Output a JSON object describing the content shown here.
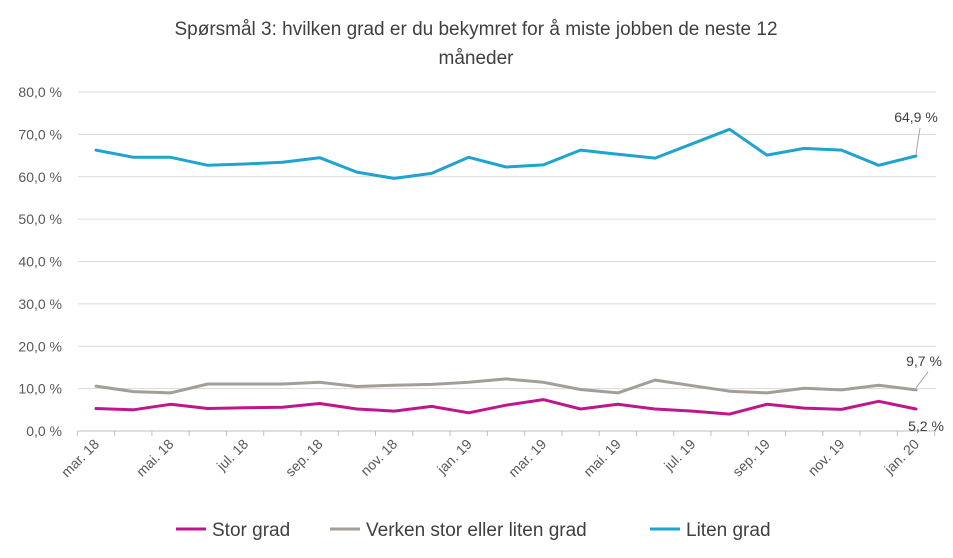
{
  "chart_data": {
    "type": "line",
    "title": "Spørsmål 3: hvilken grad er du bekymret for å miste jobben de neste 12 måneder",
    "title_lines": [
      "Spørsmål 3: hvilken grad er du bekymret for å miste jobben de neste 12",
      "måneder"
    ],
    "xlabel": "",
    "ylabel": "",
    "ylim": [
      0,
      80
    ],
    "y_ticks": [
      0,
      10,
      20,
      30,
      40,
      50,
      60,
      70,
      80
    ],
    "y_tick_labels": [
      "0,0 %",
      "10,0 %",
      "20,0 %",
      "30,0 %",
      "40,0 %",
      "50,0 %",
      "60,0 %",
      "70,0 %",
      "80,0 %"
    ],
    "x_tick_labels": [
      "mar. 18",
      "mai. 18",
      "jul. 18",
      "sep. 18",
      "nov. 18",
      "jan. 19",
      "mar. 19",
      "mai. 19",
      "jul. 19",
      "sep. 19",
      "nov. 19",
      "jan. 20"
    ],
    "grid": "horizontal",
    "legend_position": "bottom",
    "series": [
      {
        "name": "Stor grad",
        "color": "#c0168c",
        "values": [
          5.3,
          5.0,
          6.3,
          5.3,
          5.5,
          5.6,
          6.5,
          5.2,
          4.7,
          5.8,
          4.3,
          6.1,
          7.4,
          5.2,
          6.3,
          5.2,
          4.7,
          4.0,
          6.3,
          5.4,
          5.1,
          7.0,
          5.2
        ]
      },
      {
        "name": "Verken stor eller liten grad",
        "color": "#a39e97",
        "values": [
          10.6,
          9.3,
          9.0,
          11.1,
          11.1,
          11.1,
          11.5,
          10.5,
          10.8,
          11.0,
          11.5,
          12.3,
          11.5,
          9.8,
          9.0,
          12.0,
          10.7,
          9.4,
          9.0,
          10.1,
          9.7,
          10.8,
          9.7
        ]
      },
      {
        "name": "Liten grad",
        "color": "#1fa3cf",
        "values": [
          66.3,
          64.6,
          64.6,
          62.7,
          63.0,
          63.4,
          64.5,
          61.1,
          59.6,
          60.8,
          64.6,
          62.3,
          62.8,
          66.3,
          65.3,
          64.4,
          67.8,
          71.2,
          65.1,
          66.7,
          66.3,
          62.7,
          64.9
        ]
      }
    ],
    "annotations": [
      {
        "series": "Liten grad",
        "text": "64,9 %"
      },
      {
        "series": "Verken stor eller liten grad",
        "text": "9,7 %"
      },
      {
        "series": "Stor grad",
        "text": "5,2 %"
      }
    ]
  }
}
